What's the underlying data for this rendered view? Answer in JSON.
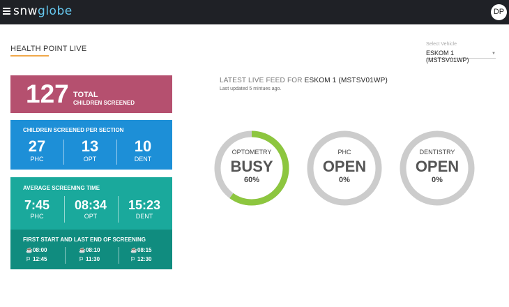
{
  "header": {
    "logo_prefix": "sn",
    "logo_mid": "w",
    "logo_suffix": "globe",
    "avatar_initials": "DP"
  },
  "page": {
    "title": "HEALTH POINT LIVE"
  },
  "vehicle_select": {
    "label": "Select Vehicle",
    "value": "ESKOM 1 (MSTSV01WP)"
  },
  "total_card": {
    "value": "127",
    "label_line1": "TOTAL",
    "label_line2": "CHILDREN SCREENED",
    "color": "#b5506f"
  },
  "section_card": {
    "title": "CHILDREN SCREENED PER SECTION",
    "color": "#1d8fd7",
    "stats": [
      {
        "value": "27",
        "label": "PHC"
      },
      {
        "value": "13",
        "label": "OPT"
      },
      {
        "value": "10",
        "label": "DENT"
      }
    ]
  },
  "avg_card": {
    "title": "AVERAGE SCREENING TIME",
    "color": "#1aa99c",
    "stats": [
      {
        "value": "7:45",
        "label": "PHC"
      },
      {
        "value": "08:34",
        "label": "OPT"
      },
      {
        "value": "15:23",
        "label": "DENT"
      }
    ],
    "sub_title": "FIRST START AND LAST END OF SCREENING",
    "times": [
      {
        "start": "08:00",
        "end": "12:45"
      },
      {
        "start": "08:10",
        "end": "11:30"
      },
      {
        "start": "08:15",
        "end": "12:30"
      }
    ]
  },
  "feed": {
    "title_prefix": "LATEST LIVE FEED FOR",
    "vehicle": "ESKOM 1 (MSTSV01WP)",
    "updated": "Last updated 5 mintues ago."
  },
  "gauges": [
    {
      "name": "OPTOMETRY",
      "status": "BUSY",
      "percent": "60%",
      "fraction": 0.6
    },
    {
      "name": "PHC",
      "status": "OPEN",
      "percent": "0%",
      "fraction": 0
    },
    {
      "name": "DENTISTRY",
      "status": "OPEN",
      "percent": "0%",
      "fraction": 0
    }
  ],
  "colors": {
    "gauge_track": "#cccccc",
    "gauge_fill": "#8dc63f",
    "accent_underline": "#f0a84a"
  }
}
